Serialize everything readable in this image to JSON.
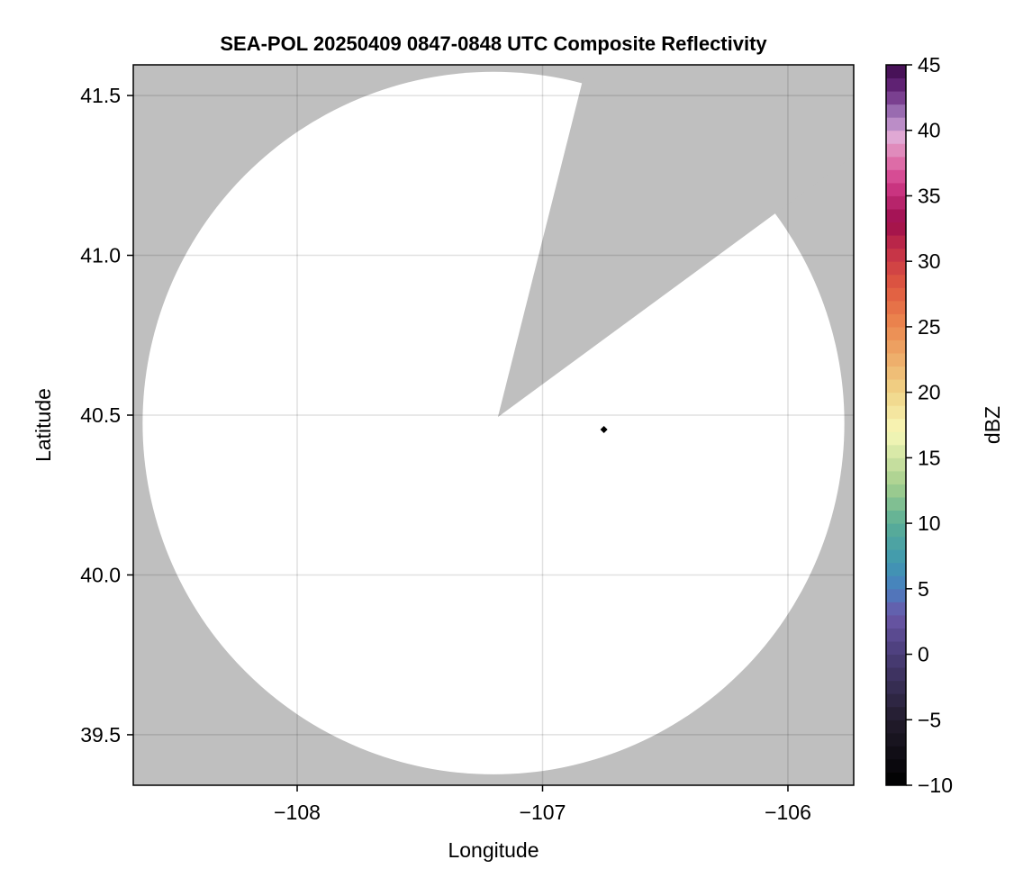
{
  "chart_data": {
    "type": "heatmap",
    "title": "SEA-POL 20250409 0847-0848 UTC Composite Reflectivity",
    "xlabel": "Longitude",
    "ylabel": "Latitude",
    "xlim": [
      -108.668,
      -105.732
    ],
    "ylim": [
      39.342,
      41.596
    ],
    "xticks": [
      -108,
      -107,
      -106
    ],
    "xtick_labels": [
      "−108",
      "−107",
      "−106"
    ],
    "yticks": [
      39.5,
      40.0,
      40.5,
      41.0,
      41.5
    ],
    "ytick_labels": [
      "39.5",
      "40.0",
      "40.5",
      "41.0",
      "41.5"
    ],
    "grid": true,
    "background_color": "#bfbfbf",
    "coverage": {
      "center_lon": -107.2,
      "center_lat": 40.475,
      "radius_lon": 1.43,
      "radius_lat": 1.099,
      "color": "#ffffff"
    },
    "blocked_sector": {
      "apex": [
        -107.182,
        40.494
      ],
      "edge1": [
        -106.844,
        41.525
      ],
      "edge2": [
        -106.066,
        41.123
      ],
      "color": "#bfbfbf"
    },
    "marker": {
      "lon": -106.75,
      "lat": 40.455,
      "color": "#000000"
    },
    "colorbar": {
      "label": "dBZ",
      "range": [
        -10,
        45
      ],
      "bins": 55,
      "ticks": [
        -10,
        -5,
        0,
        5,
        10,
        15,
        20,
        25,
        30,
        35,
        40,
        45
      ],
      "tick_labels": [
        "−10",
        "−5",
        "0",
        "5",
        "10",
        "15",
        "20",
        "25",
        "30",
        "35",
        "40",
        "45"
      ],
      "colormap": [
        [
          -10,
          "#000000"
        ],
        [
          -5,
          "#221c2c"
        ],
        [
          0,
          "#4a3d78"
        ],
        [
          3,
          "#6a57a8"
        ],
        [
          5,
          "#4a7fc0"
        ],
        [
          7,
          "#3f98b0"
        ],
        [
          10,
          "#5aae96"
        ],
        [
          13,
          "#a6cf8e"
        ],
        [
          17,
          "#f8f8b8"
        ],
        [
          20,
          "#f0d488"
        ],
        [
          25,
          "#ec8a50"
        ],
        [
          28,
          "#e05a40"
        ],
        [
          31,
          "#c22e48"
        ],
        [
          33,
          "#9c0c4c"
        ],
        [
          36,
          "#d23c8a"
        ],
        [
          38,
          "#e07cb0"
        ],
        [
          39.5,
          "#e0a8d4"
        ],
        [
          41,
          "#a880c0"
        ],
        [
          43,
          "#6a2a80"
        ],
        [
          45,
          "#3c0a4a"
        ]
      ]
    }
  }
}
